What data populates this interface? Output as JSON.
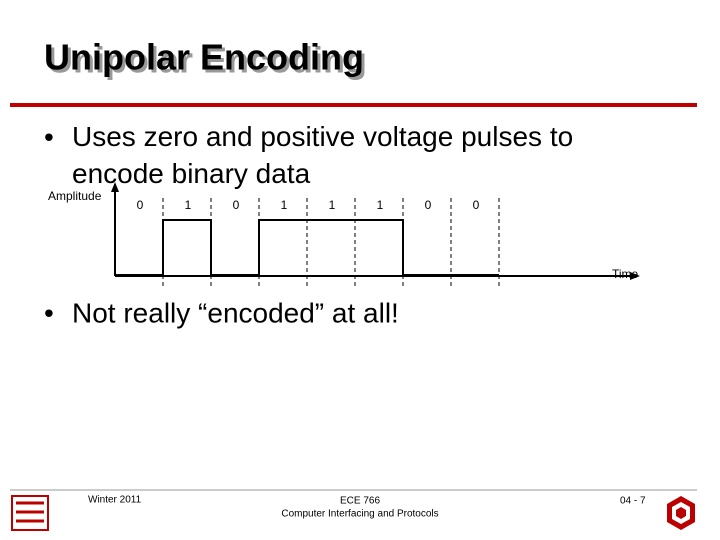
{
  "header": {
    "title": "Unipolar Encoding"
  },
  "bullets": [
    "Uses zero and positive voltage pulses to encode binary data",
    "Not really “encoded” at all!"
  ],
  "diagram": {
    "y_axis_label": "Amplitude",
    "x_axis_label": "Time",
    "bits": [
      0,
      1,
      0,
      1,
      1,
      1,
      0,
      0
    ]
  },
  "footer": {
    "date": "Winter 2011",
    "course": "ECE 766",
    "course_title": "Computer Interfacing and Protocols",
    "page": "04 - 7"
  }
}
